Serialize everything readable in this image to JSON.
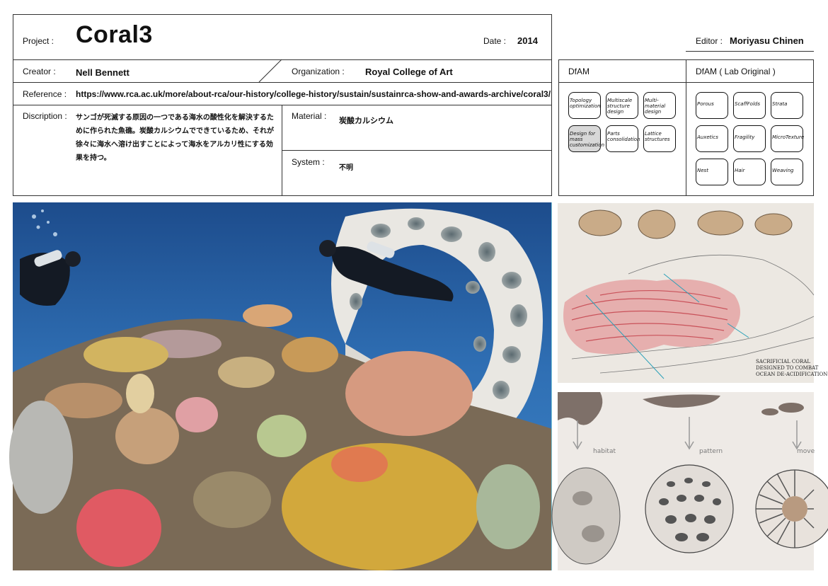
{
  "header": {
    "project_label": "Project :",
    "project_value": "Coral3",
    "date_label": "Date :",
    "date_value": "2014",
    "editor_label": "Editor :",
    "editor_value": "Moriyasu Chinen"
  },
  "info": {
    "creator_label": "Creator :",
    "creator_value": "Nell Bennett",
    "organization_label": "Organization :",
    "organization_value": "Royal College of Art",
    "reference_label": "Reference :",
    "reference_value": "https://www.rca.ac.uk/more/about-rca/our-history/college-history/sustain/sustainrca-show-and-awards-archive/coral3/",
    "description_label": "Discription :",
    "description_lines": [
      "サンゴが死滅する原因の一つである海水の酸性化を解決するた",
      "めに作られた魚礁。炭酸カルシウムでできているため、それが",
      "徐々に海水へ溶け出すことによって海水をアルカリ性にする効",
      "果を持つ。"
    ],
    "material_label": "Material :",
    "material_value": "炭酸カルシウム",
    "system_label": "System :",
    "system_value": "不明"
  },
  "dfam": {
    "title": "DfAM",
    "items": [
      {
        "label": "Topology optimization",
        "selected": false
      },
      {
        "label": "Multiscale structure design",
        "selected": false
      },
      {
        "label": "Multi-material design",
        "selected": false
      },
      {
        "label": "Design for mass customization",
        "selected": true
      },
      {
        "label": "Parts consolidation",
        "selected": false
      },
      {
        "label": "Lattice structures",
        "selected": false
      }
    ]
  },
  "dfam_lab": {
    "title": "DfAM ( Lab Original )",
    "items": [
      {
        "label": "Porous"
      },
      {
        "label": "ScaffFolds"
      },
      {
        "label": "Strata"
      },
      {
        "label": "Auxetics"
      },
      {
        "label": "Fragility"
      },
      {
        "label": "MicroTexture"
      },
      {
        "label": "Nest"
      },
      {
        "label": "Hair"
      },
      {
        "label": "Weaving"
      }
    ]
  },
  "sketch_top": {
    "caption_lines": [
      "SACRIFICIAL CORAL",
      "DESIGNED TO COMBAT",
      "OCEAN DE-ACIDIFICATION"
    ]
  },
  "sketch_bottom": {
    "labels": [
      "habitat",
      "pattern",
      "move"
    ]
  },
  "colors": {
    "water_deep": "#1f4f8f",
    "water_light": "#3a7fc4",
    "reef_white": "#e8e6e0",
    "coral_yellow": "#d9b040",
    "coral_red": "#e2585c",
    "sketch_red": "#c9525a"
  }
}
